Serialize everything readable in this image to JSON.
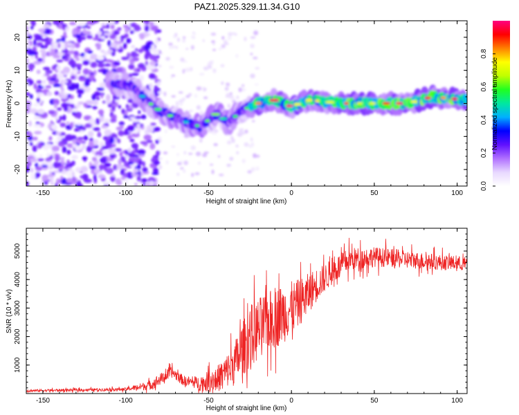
{
  "title": "PAZ1.2025.329.11.34.G10",
  "chart_data": [
    {
      "type": "heatmap",
      "xlabel": "Height of straight line (km)",
      "ylabel": "Frequency (Hz)",
      "xlim": [
        -160,
        106
      ],
      "ylim": [
        -25,
        25
      ],
      "xticks": [
        -150,
        -100,
        -50,
        0,
        50,
        100
      ],
      "yticks": [
        -20,
        -10,
        0,
        10,
        20
      ],
      "colorbar": {
        "label": "Normalized spectral amplitude",
        "range": [
          0,
          1
        ],
        "ticks": [
          "0.0",
          "0.2",
          "0.4",
          "0.6",
          "0.8"
        ],
        "tick_values": [
          0,
          0.2,
          0.4,
          0.6,
          0.8
        ],
        "colors": [
          "#ffffff",
          "#e8d8ff",
          "#b070ff",
          "#6010ff",
          "#0000ff",
          "#00b0ff",
          "#00e8a0",
          "#20ff20",
          "#c0ff00",
          "#ffff00",
          "#ff8000",
          "#ff0000",
          "#ff0080"
        ]
      },
      "ridge": [
        {
          "x": -105,
          "y": 6
        },
        {
          "x": -95,
          "y": 5
        },
        {
          "x": -88,
          "y": 1
        },
        {
          "x": -80,
          "y": -2
        },
        {
          "x": -72,
          "y": -4
        },
        {
          "x": -62,
          "y": -6
        },
        {
          "x": -55,
          "y": -7
        },
        {
          "x": -45,
          "y": -3
        },
        {
          "x": -38,
          "y": -6
        },
        {
          "x": -30,
          "y": -2
        },
        {
          "x": -20,
          "y": 0
        },
        {
          "x": -10,
          "y": 1
        },
        {
          "x": 0,
          "y": -1
        },
        {
          "x": 10,
          "y": 1
        },
        {
          "x": 30,
          "y": 0
        },
        {
          "x": 50,
          "y": 0
        },
        {
          "x": 70,
          "y": 0
        },
        {
          "x": 85,
          "y": 2
        },
        {
          "x": 106,
          "y": 1
        }
      ]
    },
    {
      "type": "line",
      "xlabel": "Height of straight line (km)",
      "ylabel": "SNR (10 * v/v)",
      "xlim": [
        -160,
        106
      ],
      "ylim": [
        0,
        5800
      ],
      "xticks": [
        -150,
        -100,
        -50,
        0,
        50,
        100
      ],
      "yticks": [
        1000,
        2000,
        3000,
        4000,
        5000
      ],
      "color": "#ee2222",
      "trend": [
        {
          "x": -160,
          "y": 100
        },
        {
          "x": -100,
          "y": 150
        },
        {
          "x": -85,
          "y": 300
        },
        {
          "x": -72,
          "y": 750
        },
        {
          "x": -65,
          "y": 450
        },
        {
          "x": -55,
          "y": 350
        },
        {
          "x": -45,
          "y": 500
        },
        {
          "x": -35,
          "y": 1000
        },
        {
          "x": -25,
          "y": 2000
        },
        {
          "x": -15,
          "y": 2500
        },
        {
          "x": -5,
          "y": 2800
        },
        {
          "x": 5,
          "y": 3200
        },
        {
          "x": 15,
          "y": 3800
        },
        {
          "x": 25,
          "y": 4300
        },
        {
          "x": 35,
          "y": 4700
        },
        {
          "x": 50,
          "y": 4800
        },
        {
          "x": 70,
          "y": 4700
        },
        {
          "x": 90,
          "y": 4600
        },
        {
          "x": 106,
          "y": 4550
        }
      ],
      "noise_amplitude": [
        {
          "x": -160,
          "y": 60
        },
        {
          "x": -100,
          "y": 80
        },
        {
          "x": -80,
          "y": 300
        },
        {
          "x": -60,
          "y": 250
        },
        {
          "x": -40,
          "y": 800
        },
        {
          "x": -25,
          "y": 1600
        },
        {
          "x": -5,
          "y": 1500
        },
        {
          "x": 20,
          "y": 700
        },
        {
          "x": 50,
          "y": 500
        },
        {
          "x": 106,
          "y": 350
        }
      ]
    }
  ]
}
